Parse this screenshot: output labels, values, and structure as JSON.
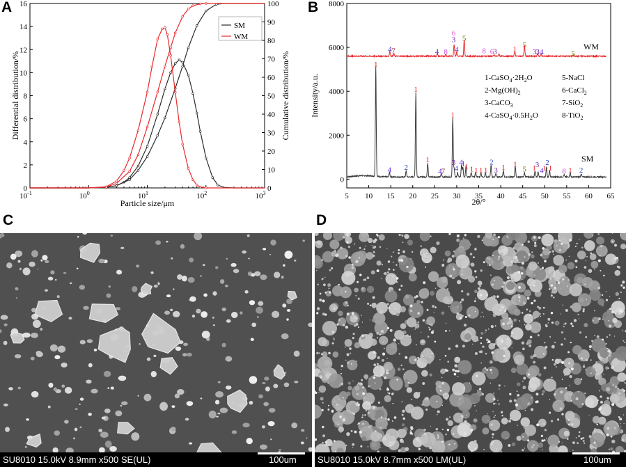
{
  "panels": {
    "a": "A",
    "b": "B",
    "c": "C",
    "d": "D"
  },
  "chart_data": [
    {
      "type": "line",
      "panel": "A",
      "xlabel": "Particle size/μm",
      "ylabel": "Differential distribution/%",
      "y2label": "Cumulative distribution/%",
      "xscale": "log",
      "xlim": [
        0.1,
        1000
      ],
      "xticks": [
        "10⁻¹",
        "10⁰",
        "10¹",
        "10²",
        "10³"
      ],
      "ylim": [
        0,
        16
      ],
      "yticks": [
        "0",
        "2",
        "4",
        "6",
        "8",
        "10",
        "12",
        "14",
        "16"
      ],
      "y2lim": [
        0,
        100
      ],
      "y2ticks": [
        "0",
        "10",
        "20",
        "30",
        "40",
        "50",
        "60",
        "70",
        "80",
        "90",
        "100"
      ],
      "legend": "top-right",
      "colors": {
        "SM": "#2b2b2b",
        "WM": "#e8282b"
      },
      "series": [
        {
          "name": "SM",
          "kind": "differential",
          "axis": "left",
          "x": [
            0.1,
            1,
            2,
            3,
            4,
            5,
            7,
            10,
            15,
            20,
            25,
            30,
            35,
            40,
            50,
            60,
            70,
            80,
            100,
            130,
            160,
            200,
            300,
            1000
          ],
          "y": [
            0,
            0,
            0.05,
            0.2,
            0.5,
            0.9,
            1.9,
            3.6,
            6.4,
            8.6,
            10.0,
            10.8,
            11.1,
            10.9,
            9.8,
            8.2,
            6.5,
            4.9,
            2.6,
            0.9,
            0.25,
            0.05,
            0,
            0
          ]
        },
        {
          "name": "SM",
          "kind": "cumulative",
          "axis": "right",
          "x": [
            0.1,
            1,
            2,
            3,
            5,
            7,
            10,
            15,
            20,
            30,
            40,
            50,
            70,
            100,
            150,
            200,
            300,
            1000
          ],
          "y": [
            0,
            0,
            0.3,
            1.2,
            4.5,
            9.5,
            17,
            28.5,
            38,
            54,
            66,
            76,
            88,
            96,
            99.5,
            100,
            100,
            100
          ]
        },
        {
          "name": "WM",
          "kind": "differential",
          "axis": "left",
          "x": [
            0.1,
            1,
            2,
            3,
            4,
            5,
            7,
            10,
            12,
            15,
            18,
            20,
            22,
            25,
            30,
            35,
            40,
            50,
            60,
            70,
            80,
            100,
            1000
          ],
          "y": [
            0,
            0,
            0.1,
            0.6,
            1.5,
            2.6,
            5.0,
            8.3,
            10.5,
            12.9,
            13.8,
            13.9,
            13.3,
            11.5,
            8.3,
            5.7,
            3.8,
            1.7,
            0.7,
            0.25,
            0.08,
            0,
            0
          ]
        },
        {
          "name": "WM",
          "kind": "cumulative",
          "axis": "right",
          "x": [
            0.1,
            1,
            2,
            3,
            5,
            7,
            10,
            15,
            20,
            25,
            30,
            40,
            50,
            60,
            80,
            100,
            1000
          ],
          "y": [
            0,
            0,
            0.4,
            2.5,
            9,
            18,
            33,
            52,
            66,
            76,
            84,
            93,
            97,
            98.8,
            99.8,
            100,
            100
          ]
        }
      ]
    },
    {
      "type": "line",
      "panel": "B",
      "xlabel": "2θ/°",
      "ylabel": "Intensity/a.u.",
      "xlim": [
        5,
        65
      ],
      "xticks": [
        "5",
        "10",
        "15",
        "20",
        "25",
        "30",
        "35",
        "40",
        "45",
        "50",
        "55",
        "60",
        "65"
      ],
      "ylim": [
        -400,
        8000
      ],
      "yticks": [
        "0",
        "2000",
        "4000",
        "6000",
        "8000"
      ],
      "colors": {
        "SM": "#3a3a3a",
        "WM": "#e8282b"
      },
      "series": [
        {
          "name": "SM",
          "baseline": 100,
          "peaks": [
            [
              11.6,
              5000
            ],
            [
              14.7,
              220
            ],
            [
              18.5,
              280
            ],
            [
              20.7,
              3850
            ],
            [
              23.4,
              650
            ],
            [
              26.5,
              150
            ],
            [
              29.1,
              2680
            ],
            [
              29.4,
              400
            ],
            [
              30.2,
              200
            ],
            [
              31.1,
              550
            ],
            [
              31.4,
              450
            ],
            [
              32.1,
              500
            ],
            [
              33.3,
              200
            ],
            [
              34.3,
              200
            ],
            [
              35.5,
              200
            ],
            [
              36.5,
              200
            ],
            [
              37.8,
              550
            ],
            [
              38.9,
              150
            ],
            [
              40.6,
              300
            ],
            [
              43.3,
              500
            ],
            [
              45.4,
              200
            ],
            [
              47.8,
              250
            ],
            [
              48.5,
              250
            ],
            [
              50.4,
              450
            ],
            [
              51.1,
              300
            ],
            [
              54.4,
              100
            ],
            [
              55.8,
              200
            ],
            [
              58.3,
              150
            ]
          ]
        },
        {
          "name": "WM",
          "baseline": 5600,
          "peaks": [
            [
              14.8,
              220
            ],
            [
              15.7,
              120
            ],
            [
              25.6,
              100
            ],
            [
              27.5,
              80
            ],
            [
              29.4,
              550
            ],
            [
              30.0,
              200
            ],
            [
              31.7,
              750
            ],
            [
              38.5,
              60
            ],
            [
              39.6,
              100
            ],
            [
              43.2,
              220
            ],
            [
              45.4,
              500
            ],
            [
              48.4,
              130
            ],
            [
              49.2,
              100
            ],
            [
              56.5,
              40
            ]
          ]
        }
      ],
      "series_labels": {
        "WM": "WM",
        "SM": "SM"
      },
      "legend_entries": [
        [
          "1-CaSO",
          "4",
          "·2H",
          "2",
          "O"
        ],
        [
          "5-NaCl"
        ],
        [
          "2-Mg(OH)",
          "2",
          ""
        ],
        [
          "6-CaCl",
          "2",
          ""
        ],
        [
          "3-CaCO",
          "3",
          ""
        ],
        [
          "7-SiO",
          "2",
          ""
        ],
        [
          "4-CaSO",
          "4",
          "·0.5H",
          "2",
          "O"
        ],
        [
          "8-TiO",
          "2",
          ""
        ]
      ],
      "peak_annotations": {
        "colors": {
          "1": "#e31a1c",
          "2": "#1f3ec4",
          "3": "#7a1fa2",
          "4": "#5e2bd8",
          "5": "#7a7a00",
          "6": "#e64fd0",
          "7": "#7a2a2a",
          "8": "#c74fd6"
        },
        "SM": [
          {
            "x": 11.6,
            "y": 5120,
            "t": "1"
          },
          {
            "x": 14.7,
            "y": 320,
            "t": "4"
          },
          {
            "x": 18.5,
            "y": 420,
            "t": "2"
          },
          {
            "x": 20.7,
            "y": 3970,
            "t": "1"
          },
          {
            "x": 23.4,
            "y": 780,
            "t": "1"
          },
          {
            "x": 26.2,
            "y": 250,
            "t": "4"
          },
          {
            "x": 26.9,
            "y": 250,
            "t": "7"
          },
          {
            "x": 29.1,
            "y": 2810,
            "t": "1"
          },
          {
            "x": 29.3,
            "y": 640,
            "t": "3"
          },
          {
            "x": 29.9,
            "y": 380,
            "t": "4"
          },
          {
            "x": 31.0,
            "y": 660,
            "t": "4"
          },
          {
            "x": 31.5,
            "y": 600,
            "t": "1"
          },
          {
            "x": 32.2,
            "y": 460,
            "t": "1"
          },
          {
            "x": 33.4,
            "y": 340,
            "t": "1"
          },
          {
            "x": 34.4,
            "y": 290,
            "t": "1"
          },
          {
            "x": 35.5,
            "y": 290,
            "t": "1"
          },
          {
            "x": 36.6,
            "y": 290,
            "t": "1"
          },
          {
            "x": 37.9,
            "y": 660,
            "t": "2"
          },
          {
            "x": 38.9,
            "y": 300,
            "t": "3"
          },
          {
            "x": 40.6,
            "y": 420,
            "t": "1"
          },
          {
            "x": 43.3,
            "y": 570,
            "t": "1"
          },
          {
            "x": 45.4,
            "y": 350,
            "t": "5"
          },
          {
            "x": 47.6,
            "y": 400,
            "t": "1"
          },
          {
            "x": 48.3,
            "y": 550,
            "t": "3"
          },
          {
            "x": 49.3,
            "y": 280,
            "t": "4"
          },
          {
            "x": 49.9,
            "y": 400,
            "t": "1"
          },
          {
            "x": 50.6,
            "y": 650,
            "t": "2"
          },
          {
            "x": 51.3,
            "y": 400,
            "t": "1"
          },
          {
            "x": 54.4,
            "y": 250,
            "t": "8"
          },
          {
            "x": 55.8,
            "y": 300,
            "t": "1"
          },
          {
            "x": 58.3,
            "y": 300,
            "t": "2"
          }
        ],
        "WM": [
          {
            "x": 14.8,
            "y": 5820,
            "t": "4"
          },
          {
            "x": 15.6,
            "y": 5730,
            "t": "7"
          },
          {
            "x": 25.5,
            "y": 5700,
            "t": "4"
          },
          {
            "x": 27.5,
            "y": 5690,
            "t": "8"
          },
          {
            "x": 29.3,
            "y": 6540,
            "t": "6"
          },
          {
            "x": 29.3,
            "y": 6240,
            "t": "3"
          },
          {
            "x": 30.0,
            "y": 5800,
            "t": "4"
          },
          {
            "x": 31.7,
            "y": 6300,
            "t": "5"
          },
          {
            "x": 36.2,
            "y": 5730,
            "t": "8"
          },
          {
            "x": 38.0,
            "y": 5700,
            "t": "6"
          },
          {
            "x": 38.7,
            "y": 5700,
            "t": "3"
          },
          {
            "x": 43.2,
            "y": 5810,
            "t": "1"
          },
          {
            "x": 45.4,
            "y": 6000,
            "t": "5"
          },
          {
            "x": 47.7,
            "y": 5690,
            "t": "3"
          },
          {
            "x": 48.4,
            "y": 5690,
            "t": "3"
          },
          {
            "x": 49.3,
            "y": 5690,
            "t": "4"
          },
          {
            "x": 56.5,
            "y": 5610,
            "t": "5"
          }
        ]
      }
    }
  ],
  "sem": {
    "c": {
      "info": "SU8010 15.0kV 8.9mm x500 SE(UL)",
      "scale": "100um"
    },
    "d": {
      "info": "SU8010 15.0kV 8.7mm x500 LM(UL)",
      "scale": "100um"
    }
  }
}
